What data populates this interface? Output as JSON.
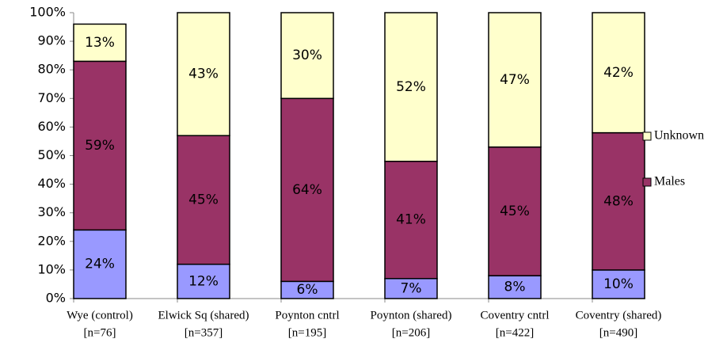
{
  "chart_data": {
    "type": "stacked_bar",
    "categories": [
      [
        "Wye (control)",
        "[n=76]"
      ],
      [
        "Elwick Sq (shared)",
        "[n=357]"
      ],
      [
        "Poynton cntrl",
        "[n=195]"
      ],
      [
        "Poynton (shared)",
        "[n=206]"
      ],
      [
        "Coventry cntrl",
        "[n=422]"
      ],
      [
        "Coventry (shared)",
        "[n=490]"
      ]
    ],
    "series": [
      {
        "color": "#9999ff",
        "values": [
          24,
          12,
          6,
          7,
          8,
          10
        ],
        "value_labels": [
          "24%",
          "12%",
          "6%",
          "7%",
          "8%",
          "10%"
        ]
      },
      {
        "name": "Males",
        "color": "#993366",
        "values": [
          59,
          45,
          64,
          41,
          45,
          48
        ],
        "value_labels": [
          "59%",
          "45%",
          "64%",
          "41%",
          "45%",
          "48%"
        ]
      },
      {
        "name": "Unknown",
        "color": "#ffffcc",
        "values": [
          13,
          43,
          30,
          52,
          47,
          42
        ],
        "value_labels": [
          "13%",
          "43%",
          "30%",
          "52%",
          "47%",
          "42%"
        ]
      }
    ],
    "ylim": [
      0,
      100
    ],
    "yticks": [
      {
        "value": 0,
        "label": "0%"
      },
      {
        "value": 10,
        "label": "10%"
      },
      {
        "value": 20,
        "label": "20%"
      },
      {
        "value": 30,
        "label": "30%"
      },
      {
        "value": 40,
        "label": "40%"
      },
      {
        "value": 50,
        "label": "50%"
      },
      {
        "value": 60,
        "label": "60%"
      },
      {
        "value": 70,
        "label": "70%"
      },
      {
        "value": 80,
        "label": "80%"
      },
      {
        "value": 90,
        "label": "90%"
      },
      {
        "value": 100,
        "label": "100%"
      }
    ],
    "legend": "right"
  }
}
